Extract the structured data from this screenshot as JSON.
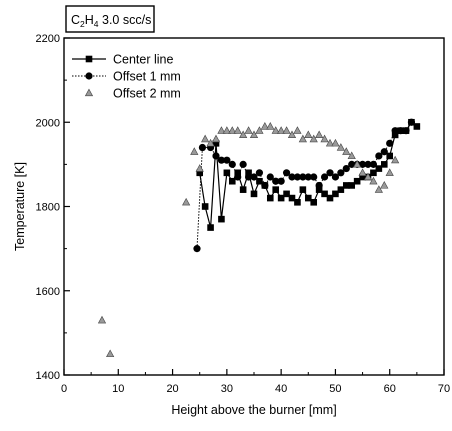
{
  "chart_data": {
    "type": "scatter",
    "title": "C2H4 3.0 scc/s",
    "title_parts": {
      "pre": "C",
      "sub1": "2",
      "mid": "H",
      "sub2": "4",
      "post": " 3.0 scc/s"
    },
    "xlabel": "Height above the burner [mm]",
    "ylabel": "Temperature [K]",
    "xlim": [
      0,
      70
    ],
    "ylim": [
      1400,
      2200
    ],
    "xticks": [
      0,
      10,
      20,
      30,
      40,
      50,
      60,
      70
    ],
    "yticks": [
      1400,
      1600,
      1800,
      2000,
      2200
    ],
    "legend_position": "top-left",
    "grid": false,
    "series": [
      {
        "name": "Center line",
        "marker": "square",
        "line": "solid",
        "x": [
          25,
          26,
          27,
          28,
          29,
          30,
          31,
          32,
          33,
          34,
          35,
          36,
          37,
          38,
          39,
          40,
          41,
          42,
          43,
          44,
          45,
          46,
          47,
          48,
          49,
          50,
          51,
          52,
          53,
          54,
          55,
          56,
          57,
          58,
          59,
          60,
          61,
          62,
          63,
          64,
          65
        ],
        "y": [
          1880,
          1800,
          1750,
          1950,
          1770,
          1880,
          1860,
          1880,
          1840,
          1880,
          1830,
          1860,
          1850,
          1820,
          1840,
          1820,
          1830,
          1820,
          1810,
          1840,
          1820,
          1810,
          1840,
          1830,
          1820,
          1830,
          1840,
          1850,
          1850,
          1860,
          1870,
          1870,
          1880,
          1890,
          1900,
          1920,
          1970,
          1980,
          1980,
          2000,
          1990
        ]
      },
      {
        "name": "Offset 1 mm",
        "marker": "circle",
        "line": "dotted",
        "x": [
          24.5,
          25.5,
          27,
          28,
          29,
          30,
          31,
          32,
          33,
          34,
          35,
          36,
          37,
          38,
          39,
          40,
          41,
          42,
          43,
          44,
          45,
          46,
          47,
          48,
          49,
          50,
          51,
          52,
          53,
          54,
          55,
          56,
          57,
          58,
          59,
          60,
          61,
          62,
          63,
          64
        ],
        "y": [
          1700,
          1940,
          1940,
          1920,
          1910,
          1910,
          1900,
          1870,
          1900,
          1870,
          1870,
          1880,
          1850,
          1870,
          1860,
          1860,
          1880,
          1870,
          1870,
          1870,
          1870,
          1870,
          1850,
          1870,
          1880,
          1870,
          1880,
          1890,
          1900,
          1900,
          1900,
          1900,
          1900,
          1920,
          1930,
          1950,
          1980,
          1980,
          1980,
          2000
        ]
      },
      {
        "name": "Offset 2 mm",
        "marker": "triangle",
        "line": "none",
        "x": [
          7,
          8.5,
          22.5,
          24,
          25,
          26,
          27,
          28,
          29,
          30,
          31,
          32,
          33,
          34,
          35,
          36,
          37,
          38,
          39,
          40,
          41,
          42,
          43,
          44,
          45,
          46,
          47,
          48,
          49,
          50,
          51,
          52,
          53,
          54,
          55,
          56,
          57,
          58,
          59,
          60,
          61
        ],
        "y": [
          1530,
          1450,
          1810,
          1930,
          1890,
          1960,
          1950,
          1960,
          1980,
          1980,
          1980,
          1980,
          1970,
          1980,
          1970,
          1980,
          1990,
          1990,
          1980,
          1980,
          1980,
          1970,
          1980,
          1960,
          1970,
          1960,
          1970,
          1960,
          1950,
          1950,
          1940,
          1930,
          1920,
          1900,
          1880,
          1870,
          1860,
          1840,
          1850,
          1880,
          1910
        ]
      }
    ]
  }
}
